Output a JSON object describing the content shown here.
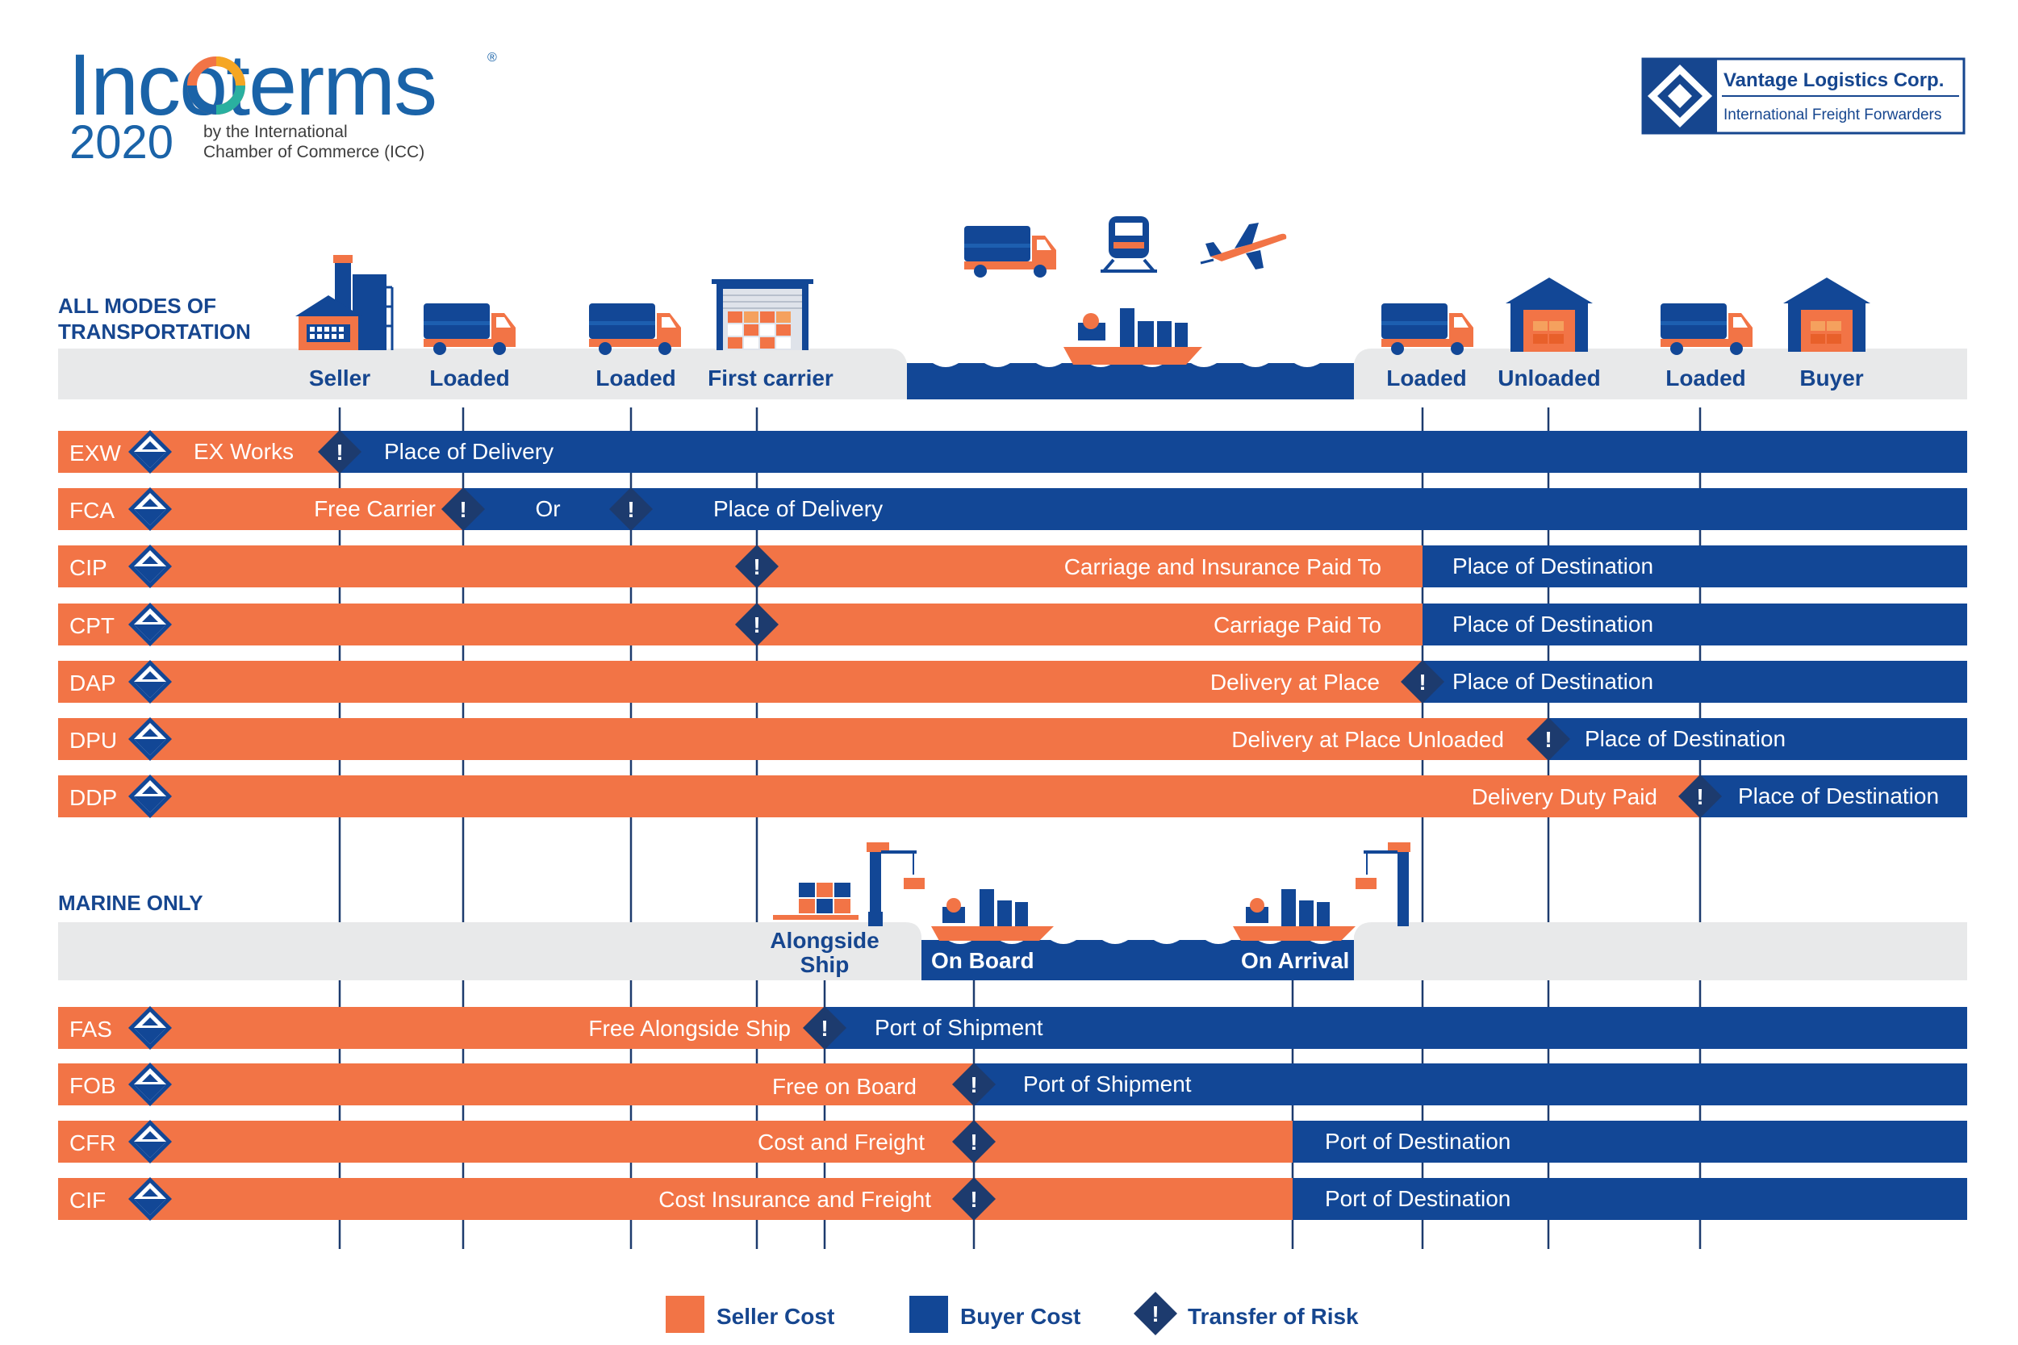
{
  "logo": {
    "brand": "Incoterms",
    "registered_mark": "®",
    "year": "2020",
    "byline_1": "by the International",
    "byline_2": "Chamber of Commerce (ICC)"
  },
  "company": {
    "name": "Vantage Logistics Corp.",
    "tagline": "International Freight Forwarders"
  },
  "sections": {
    "all_modes_1": "ALL MODES OF",
    "all_modes_2": "TRANSPORTATION",
    "marine_only": "MARINE ONLY"
  },
  "stages": {
    "seller": "Seller",
    "loaded_1": "Loaded",
    "loaded_2": "Loaded",
    "first_carrier": "First carrier",
    "loaded_3": "Loaded",
    "unloaded": "Unloaded",
    "loaded_4": "Loaded",
    "buyer": "Buyer"
  },
  "marine_stages": {
    "alongside_1": "Alongside",
    "alongside_2": "Ship",
    "on_board": "On Board",
    "on_arrival": "On Arrival"
  },
  "terms": {
    "exw": {
      "code": "EXW",
      "seller_label": "EX Works",
      "buyer_label": "Place of Delivery"
    },
    "fca": {
      "code": "FCA",
      "seller_label": "Free Carrier",
      "middle_label": "Or",
      "buyer_label": "Place of Delivery"
    },
    "cip": {
      "code": "CIP",
      "seller_label": "Carriage and Insurance Paid To",
      "buyer_label": "Place of Destination"
    },
    "cpt": {
      "code": "CPT",
      "seller_label": "Carriage Paid To",
      "buyer_label": "Place of Destination"
    },
    "dap": {
      "code": "DAP",
      "seller_label": "Delivery at Place",
      "buyer_label": "Place of Destination"
    },
    "dpu": {
      "code": "DPU",
      "seller_label": "Delivery at Place Unloaded",
      "buyer_label": "Place of Destination"
    },
    "ddp": {
      "code": "DDP",
      "seller_label": "Delivery Duty Paid",
      "buyer_label": "Place of Destination"
    },
    "fas": {
      "code": "FAS",
      "seller_label": "Free Alongside Ship",
      "buyer_label": "Port of Shipment"
    },
    "fob": {
      "code": "FOB",
      "seller_label": "Free on Board",
      "buyer_label": "Port of Shipment"
    },
    "cfr": {
      "code": "CFR",
      "seller_label": "Cost and Freight",
      "buyer_label": "Port of Destination"
    },
    "cif": {
      "code": "CIF",
      "seller_label": "Cost Insurance and Freight",
      "buyer_label": "Port of Destination"
    }
  },
  "risk_mark": "!",
  "legend": {
    "seller_cost": "Seller Cost",
    "buyer_cost": "Buyer Cost",
    "transfer_of_risk": "Transfer of Risk"
  },
  "colors": {
    "seller": "#f27446",
    "buyer": "#124796",
    "risk": "#1d3b6e",
    "brand_blue": "#1a63a8",
    "panel_gray": "#e8e9ea"
  }
}
